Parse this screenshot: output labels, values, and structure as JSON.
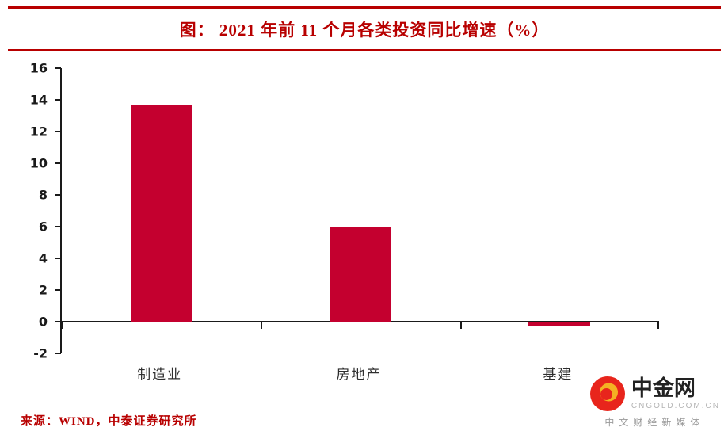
{
  "title": "图：  2021 年前 11 个月各类投资同比增速（%）",
  "source": "来源：WIND，中泰证券研究所",
  "logo": {
    "name": "中金网",
    "domain": "CNGOLD.COM.CN",
    "tagline": "中文财经新媒体"
  },
  "colors": {
    "accent_red": "#b80000",
    "bar": "#c4002f",
    "axis": "#1a1a1a",
    "logo_red": "#e8251c",
    "logo_gold": "#f4b223"
  },
  "chart_data": {
    "type": "bar",
    "title": "2021 年前 11 个月各类投资同比增速（%）",
    "categories": [
      "制造业",
      "房地产",
      "基建"
    ],
    "values": [
      13.7,
      6.0,
      -0.2
    ],
    "xlabel": "",
    "ylabel": "",
    "ylim": [
      -2,
      16
    ],
    "ytick_step": 2,
    "yticks": [
      -2,
      0,
      2,
      4,
      6,
      8,
      10,
      12,
      14,
      16
    ],
    "grid": false,
    "legend": false,
    "bar_color": "#c4002f"
  }
}
